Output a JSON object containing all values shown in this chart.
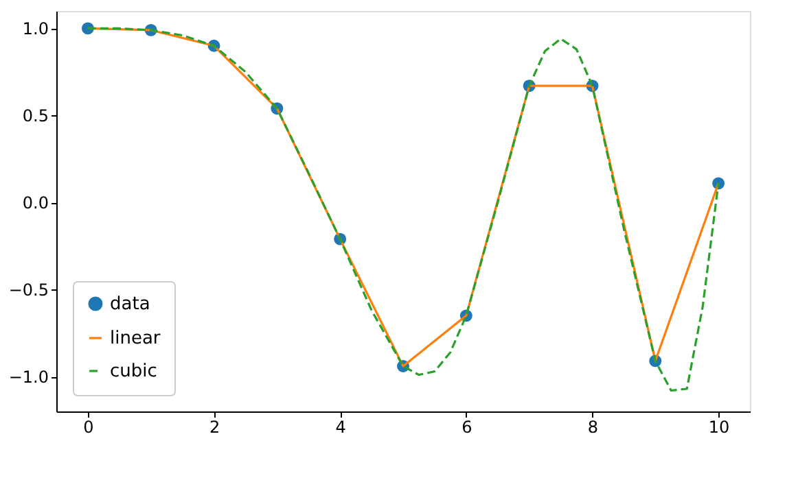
{
  "chart_data": {
    "type": "line",
    "legend": "bottom left",
    "grid": false,
    "xlim": [
      -0.5,
      10.5
    ],
    "xticks": [
      0,
      2,
      4,
      6,
      8,
      10
    ],
    "ylim": [
      -1.2,
      1.1
    ],
    "yticks": [
      {
        "value": -1,
        "label": "−1.0"
      },
      {
        "value": -0.5,
        "label": "−0.5"
      },
      {
        "value": 0,
        "label": "0.0"
      },
      {
        "value": 0.5,
        "label": "0.5"
      },
      {
        "value": 1,
        "label": "1.0"
      }
    ],
    "series": [
      {
        "name": "data",
        "type": "scatter",
        "marker": "circle",
        "color": "#1f77b4",
        "x": [
          0,
          1,
          2,
          3,
          4,
          5,
          6,
          7,
          8,
          9,
          10
        ],
        "values": [
          1.0,
          0.99,
          0.9,
          0.54,
          -0.21,
          -0.94,
          -0.65,
          0.67,
          0.67,
          -0.91,
          0.11
        ]
      },
      {
        "name": "linear",
        "line_style": "solid",
        "color": "#ff7f0e",
        "x": [
          0,
          1,
          2,
          3,
          4,
          5,
          6,
          7,
          8,
          9,
          10
        ],
        "values": [
          1.0,
          0.99,
          0.9,
          0.54,
          -0.21,
          -0.94,
          -0.65,
          0.67,
          0.67,
          -0.91,
          0.11
        ]
      },
      {
        "name": "cubic",
        "line_style": "dashed",
        "color": "#2ca02c",
        "x": [
          0,
          0.5,
          1,
          1.5,
          2,
          2.5,
          3,
          3.5,
          4,
          4.5,
          5,
          5.25,
          5.5,
          5.75,
          6,
          6.5,
          7,
          7.25,
          7.5,
          7.75,
          8,
          8.5,
          9,
          9.25,
          9.5,
          9.75,
          10
        ],
        "values": [
          1.0,
          1.0,
          0.99,
          0.96,
          0.9,
          0.75,
          0.54,
          0.17,
          -0.21,
          -0.62,
          -0.94,
          -0.99,
          -0.97,
          -0.86,
          -0.65,
          0.0,
          0.67,
          0.87,
          0.94,
          0.88,
          0.67,
          -0.15,
          -0.91,
          -1.08,
          -1.07,
          -0.6,
          0.11
        ]
      }
    ]
  }
}
